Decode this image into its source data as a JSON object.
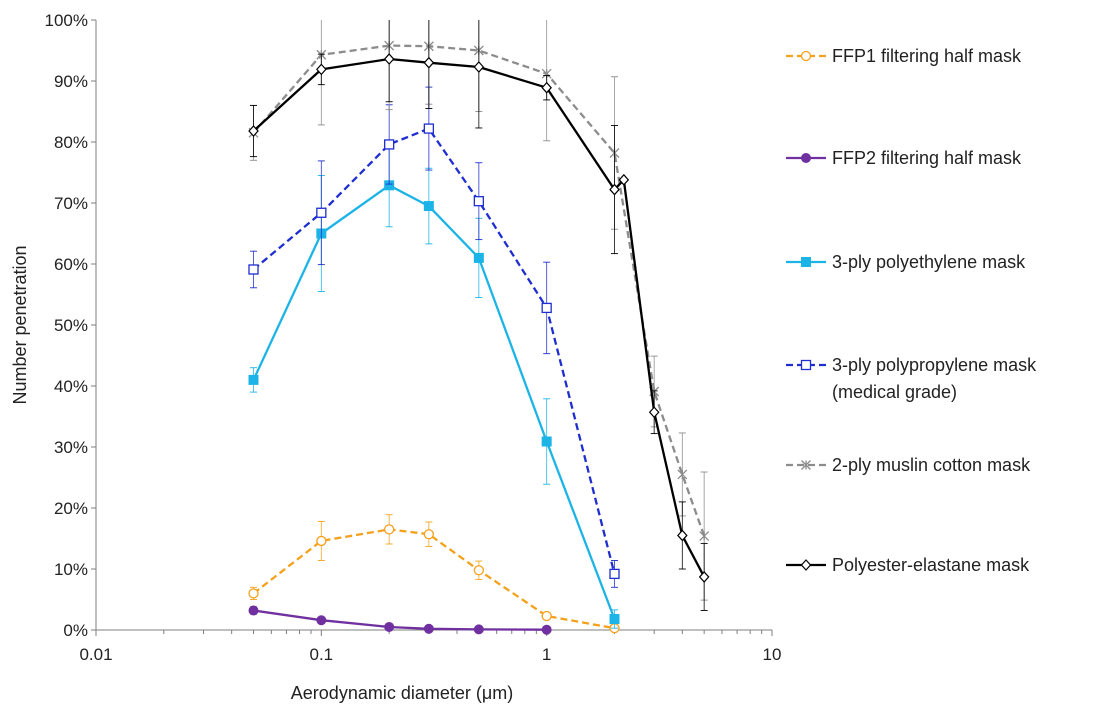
{
  "chart_data": {
    "type": "line",
    "xlabel": "Aerodynamic diameter (μm)",
    "ylabel": "Number penetration",
    "x_scale": "log",
    "xlim": [
      0.01,
      10
    ],
    "ylim": [
      0,
      100
    ],
    "x_ticks": [
      "0.01",
      "0.1",
      "1",
      "10"
    ],
    "y_ticks": [
      "0%",
      "10%",
      "20%",
      "30%",
      "40%",
      "50%",
      "60%",
      "70%",
      "80%",
      "90%",
      "100%"
    ],
    "grid": false,
    "legend_position": "right",
    "series": [
      {
        "name": "FFP1 filtering half mask",
        "color": "#F4A11C",
        "dash": "dashed",
        "marker": "open-circle",
        "points": [
          {
            "x": 0.05,
            "y": 6.0,
            "err": 1.0
          },
          {
            "x": 0.1,
            "y": 14.6,
            "err": 3.2
          },
          {
            "x": 0.2,
            "y": 16.5,
            "err": 2.4
          },
          {
            "x": 0.3,
            "y": 15.7,
            "err": 2.0
          },
          {
            "x": 0.5,
            "y": 9.8,
            "err": 1.5
          },
          {
            "x": 1,
            "y": 2.3,
            "err": 0.5
          },
          {
            "x": 2,
            "y": 0.3,
            "err": 0.2
          }
        ]
      },
      {
        "name": "FFP2 filtering half mask",
        "color": "#7030A0",
        "dash": "solid",
        "marker": "filled-circle",
        "points": [
          {
            "x": 0.05,
            "y": 3.2,
            "err": 0.6
          },
          {
            "x": 0.1,
            "y": 1.6,
            "err": 0.2
          },
          {
            "x": 0.2,
            "y": 0.5,
            "err": 0.1
          },
          {
            "x": 0.3,
            "y": 0.2,
            "err": 0.1
          },
          {
            "x": 0.5,
            "y": 0.1,
            "err": 0.05
          },
          {
            "x": 1,
            "y": 0.05,
            "err": 0.05
          }
        ]
      },
      {
        "name": "3-ply polyethylene mask",
        "color": "#1CB4E6",
        "dash": "solid",
        "marker": "filled-square",
        "points": [
          {
            "x": 0.05,
            "y": 41.0,
            "err": 2.0
          },
          {
            "x": 0.1,
            "y": 65.0,
            "err": 9.5
          },
          {
            "x": 0.2,
            "y": 72.9,
            "err": 6.8
          },
          {
            "x": 0.3,
            "y": 69.5,
            "err": 6.2
          },
          {
            "x": 0.5,
            "y": 61.0,
            "err": 6.5
          },
          {
            "x": 1,
            "y": 30.9,
            "err": 7.0
          },
          {
            "x": 2,
            "y": 1.8,
            "err": 1.5
          }
        ]
      },
      {
        "name": "3-ply polypropylene mask (medical grade)",
        "legend_lines": [
          "3-ply polypropylene mask",
          "(medical grade)"
        ],
        "color": "#1F2ECF",
        "dash": "dashed",
        "marker": "open-square",
        "points": [
          {
            "x": 0.05,
            "y": 59.1,
            "err": 3.0
          },
          {
            "x": 0.1,
            "y": 68.4,
            "err": 8.5
          },
          {
            "x": 0.2,
            "y": 79.6,
            "err": 6.5
          },
          {
            "x": 0.3,
            "y": 82.2,
            "err": 6.8
          },
          {
            "x": 0.5,
            "y": 70.3,
            "err": 6.3
          },
          {
            "x": 1,
            "y": 52.8,
            "err": 7.5
          },
          {
            "x": 2,
            "y": 9.2,
            "err": 2.2
          }
        ]
      },
      {
        "name": "2-ply muslin cotton mask",
        "color": "#8C8C8C",
        "dash": "dashed",
        "marker": "star",
        "points": [
          {
            "x": 0.05,
            "y": 81.5,
            "err": 4.5
          },
          {
            "x": 0.1,
            "y": 94.3,
            "err": 11.5
          },
          {
            "x": 0.2,
            "y": 95.8,
            "err": 10.5
          },
          {
            "x": 0.3,
            "y": 95.7,
            "err": 9.5
          },
          {
            "x": 0.5,
            "y": 95.0,
            "err": 10.0
          },
          {
            "x": 1,
            "y": 91.2,
            "err": 11.0
          },
          {
            "x": 2,
            "y": 78.2,
            "err": 12.5
          },
          {
            "x": 3,
            "y": 39.1,
            "err": 5.8
          },
          {
            "x": 4,
            "y": 25.5,
            "err": 6.8
          },
          {
            "x": 5,
            "y": 15.4,
            "err": 10.5
          }
        ]
      },
      {
        "name": "Polyester-elastane mask",
        "color": "#000000",
        "dash": "solid",
        "marker": "open-diamond",
        "points": [
          {
            "x": 0.05,
            "y": 81.8,
            "err": 4.2
          },
          {
            "x": 0.1,
            "y": 91.9,
            "err": 2.5
          },
          {
            "x": 0.2,
            "y": 93.6,
            "err": 7.0
          },
          {
            "x": 0.3,
            "y": 93.0,
            "err": 7.5
          },
          {
            "x": 0.5,
            "y": 92.3,
            "err": 10.0
          },
          {
            "x": 1,
            "y": 88.9,
            "err": 2.0
          },
          {
            "x": 2,
            "y": 72.2,
            "err": 10.5
          },
          {
            "x": 2.2,
            "y": 73.8,
            "err": 0
          },
          {
            "x": 3,
            "y": 35.7,
            "err": 3.5
          },
          {
            "x": 4,
            "y": 15.5,
            "err": 5.5
          },
          {
            "x": 5,
            "y": 8.7,
            "err": 5.5
          }
        ]
      }
    ]
  }
}
